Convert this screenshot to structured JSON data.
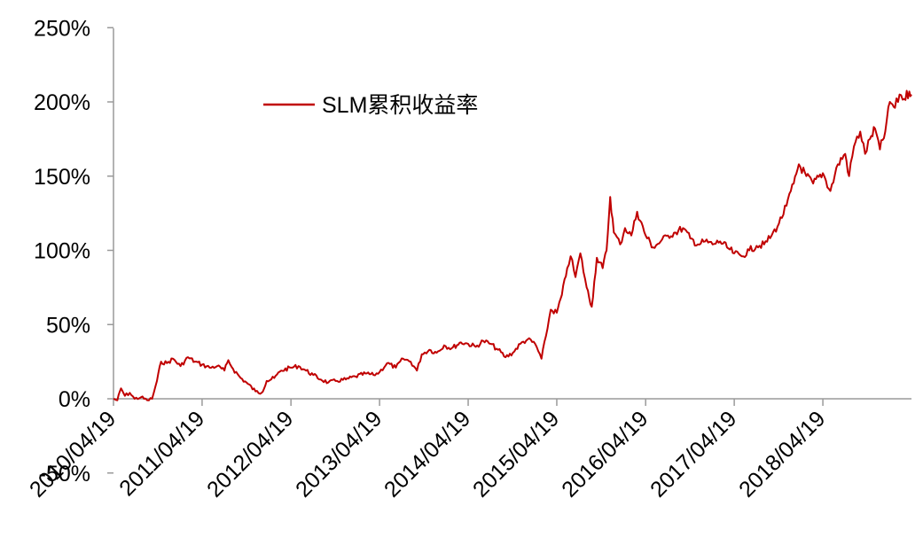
{
  "chart_data": {
    "type": "line",
    "title": "",
    "xlabel": "",
    "ylabel": "",
    "ylim": [
      -50,
      250
    ],
    "yticks": [
      {
        "value": 250,
        "label": "250%"
      },
      {
        "value": 200,
        "label": "200%"
      },
      {
        "value": 150,
        "label": "150%"
      },
      {
        "value": 100,
        "label": "100%"
      },
      {
        "value": 50,
        "label": "50%"
      },
      {
        "value": 0,
        "label": "0%"
      },
      {
        "value": -50,
        "label": "-50%"
      }
    ],
    "xlim": [
      "2010-04-19",
      "2019-04-19"
    ],
    "xticks": [
      {
        "date": "2010-04-19",
        "label": "2010/04/19"
      },
      {
        "date": "2011-04-19",
        "label": "2011/04/19"
      },
      {
        "date": "2012-04-19",
        "label": "2012/04/19"
      },
      {
        "date": "2013-04-19",
        "label": "2013/04/19"
      },
      {
        "date": "2014-04-19",
        "label": "2014/04/19"
      },
      {
        "date": "2015-04-19",
        "label": "2015/04/19"
      },
      {
        "date": "2016-04-19",
        "label": "2016/04/19"
      },
      {
        "date": "2017-04-19",
        "label": "2017/04/19"
      },
      {
        "date": "2018-04-19",
        "label": "2018/04/19"
      }
    ],
    "grid": false,
    "legend_position": "top-left",
    "series": [
      {
        "name": "SLM累积收益率",
        "color": "#c00000",
        "points": [
          [
            "2010-04-19",
            0
          ],
          [
            "2010-05-05",
            -1
          ],
          [
            "2010-05-20",
            7
          ],
          [
            "2010-06-05",
            2
          ],
          [
            "2010-06-25",
            4
          ],
          [
            "2010-07-15",
            0
          ],
          [
            "2010-08-10",
            1
          ],
          [
            "2010-09-05",
            -1
          ],
          [
            "2010-09-25",
            0
          ],
          [
            "2010-10-15",
            12
          ],
          [
            "2010-11-01",
            25
          ],
          [
            "2010-11-25",
            24
          ],
          [
            "2010-12-20",
            27
          ],
          [
            "2011-01-20",
            22
          ],
          [
            "2011-02-20",
            28
          ],
          [
            "2011-03-20",
            25
          ],
          [
            "2011-04-19",
            23
          ],
          [
            "2011-05-20",
            21
          ],
          [
            "2011-06-20",
            22
          ],
          [
            "2011-07-20",
            19
          ],
          [
            "2011-08-05",
            26
          ],
          [
            "2011-08-25",
            20
          ],
          [
            "2011-09-25",
            14
          ],
          [
            "2011-10-25",
            10
          ],
          [
            "2011-11-25",
            5
          ],
          [
            "2011-12-20",
            4
          ],
          [
            "2012-01-10",
            12
          ],
          [
            "2012-02-10",
            14
          ],
          [
            "2012-03-10",
            19
          ],
          [
            "2012-04-19",
            21
          ],
          [
            "2012-05-20",
            22
          ],
          [
            "2012-06-20",
            19
          ],
          [
            "2012-07-20",
            16
          ],
          [
            "2012-08-20",
            13
          ],
          [
            "2012-09-20",
            11
          ],
          [
            "2012-10-20",
            12
          ],
          [
            "2012-12-01",
            13
          ],
          [
            "2013-01-10",
            15
          ],
          [
            "2013-02-20",
            17
          ],
          [
            "2013-03-25",
            16
          ],
          [
            "2013-04-19",
            18
          ],
          [
            "2013-05-20",
            24
          ],
          [
            "2013-06-25",
            21
          ],
          [
            "2013-07-25",
            27
          ],
          [
            "2013-08-25",
            25
          ],
          [
            "2013-09-20",
            19
          ],
          [
            "2013-10-10",
            30
          ],
          [
            "2013-11-10",
            33
          ],
          [
            "2013-12-10",
            31
          ],
          [
            "2014-01-10",
            36
          ],
          [
            "2014-02-10",
            34
          ],
          [
            "2014-03-20",
            38
          ],
          [
            "2014-04-19",
            37
          ],
          [
            "2014-05-20",
            35
          ],
          [
            "2014-06-20",
            39
          ],
          [
            "2014-07-20",
            37
          ],
          [
            "2014-08-20",
            33
          ],
          [
            "2014-09-20",
            28
          ],
          [
            "2014-10-20",
            31
          ],
          [
            "2014-11-20",
            37
          ],
          [
            "2014-12-20",
            40
          ],
          [
            "2015-01-20",
            37
          ],
          [
            "2015-02-15",
            27
          ],
          [
            "2015-03-05",
            42
          ],
          [
            "2015-03-25",
            60
          ],
          [
            "2015-04-19",
            58
          ],
          [
            "2015-05-10",
            70
          ],
          [
            "2015-06-01",
            88
          ],
          [
            "2015-06-15",
            96
          ],
          [
            "2015-07-05",
            82
          ],
          [
            "2015-07-25",
            98
          ],
          [
            "2015-08-20",
            75
          ],
          [
            "2015-09-10",
            62
          ],
          [
            "2015-10-01",
            95
          ],
          [
            "2015-10-25",
            88
          ],
          [
            "2015-11-10",
            100
          ],
          [
            "2015-11-25",
            136
          ],
          [
            "2015-12-10",
            112
          ],
          [
            "2016-01-05",
            104
          ],
          [
            "2016-01-25",
            115
          ],
          [
            "2016-02-20",
            110
          ],
          [
            "2016-03-15",
            126
          ],
          [
            "2016-04-19",
            110
          ],
          [
            "2016-05-20",
            102
          ],
          [
            "2016-06-20",
            106
          ],
          [
            "2016-07-20",
            110
          ],
          [
            "2016-08-20",
            112
          ],
          [
            "2016-09-20",
            115
          ],
          [
            "2016-10-20",
            108
          ],
          [
            "2016-11-20",
            104
          ],
          [
            "2016-12-20",
            106
          ],
          [
            "2017-01-20",
            104
          ],
          [
            "2017-02-20",
            106
          ],
          [
            "2017-03-20",
            102
          ],
          [
            "2017-04-19",
            98
          ],
          [
            "2017-05-20",
            96
          ],
          [
            "2017-06-20",
            100
          ],
          [
            "2017-07-20",
            103
          ],
          [
            "2017-08-20",
            104
          ],
          [
            "2017-09-20",
            110
          ],
          [
            "2017-10-20",
            118
          ],
          [
            "2017-11-20",
            130
          ],
          [
            "2017-12-20",
            145
          ],
          [
            "2018-01-10",
            158
          ],
          [
            "2018-02-10",
            150
          ],
          [
            "2018-03-10",
            145
          ],
          [
            "2018-04-19",
            152
          ],
          [
            "2018-05-20",
            140
          ],
          [
            "2018-06-20",
            158
          ],
          [
            "2018-07-20",
            165
          ],
          [
            "2018-08-05",
            150
          ],
          [
            "2018-08-25",
            170
          ],
          [
            "2018-09-20",
            180
          ],
          [
            "2018-10-10",
            165
          ],
          [
            "2018-10-30",
            175
          ],
          [
            "2018-11-20",
            182
          ],
          [
            "2018-12-10",
            168
          ],
          [
            "2019-01-01",
            180
          ],
          [
            "2019-01-20",
            200
          ],
          [
            "2019-02-10",
            196
          ],
          [
            "2019-03-01",
            205
          ],
          [
            "2019-03-20",
            202
          ],
          [
            "2019-04-10",
            207
          ],
          [
            "2019-04-19",
            205
          ]
        ]
      }
    ]
  }
}
